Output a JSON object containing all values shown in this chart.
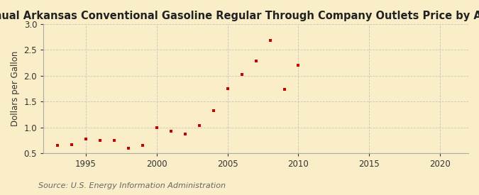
{
  "title": "Annual Arkansas Conventional Gasoline Regular Through Company Outlets Price by All Sellers",
  "ylabel": "Dollars per Gallon",
  "source": "Source: U.S. Energy Information Administration",
  "years": [
    1993,
    1994,
    1995,
    1996,
    1997,
    1998,
    1999,
    2000,
    2001,
    2002,
    2003,
    2004,
    2005,
    2006,
    2007,
    2008,
    2009,
    2010
  ],
  "values": [
    0.645,
    0.67,
    0.78,
    0.75,
    0.75,
    0.59,
    0.65,
    0.99,
    0.92,
    0.87,
    1.04,
    1.33,
    1.75,
    2.02,
    2.29,
    2.68,
    1.74,
    2.2
  ],
  "marker_color": "#cc0000",
  "background_color": "#faeec8",
  "grid_color": "#bbbbbb",
  "xlim": [
    1992,
    2022
  ],
  "ylim": [
    0.5,
    3.0
  ],
  "xticks": [
    1995,
    2000,
    2005,
    2010,
    2015,
    2020
  ],
  "yticks": [
    0.5,
    1.0,
    1.5,
    2.0,
    2.5,
    3.0
  ],
  "title_fontsize": 10.5,
  "label_fontsize": 8.5,
  "tick_fontsize": 8.5,
  "source_fontsize": 8
}
